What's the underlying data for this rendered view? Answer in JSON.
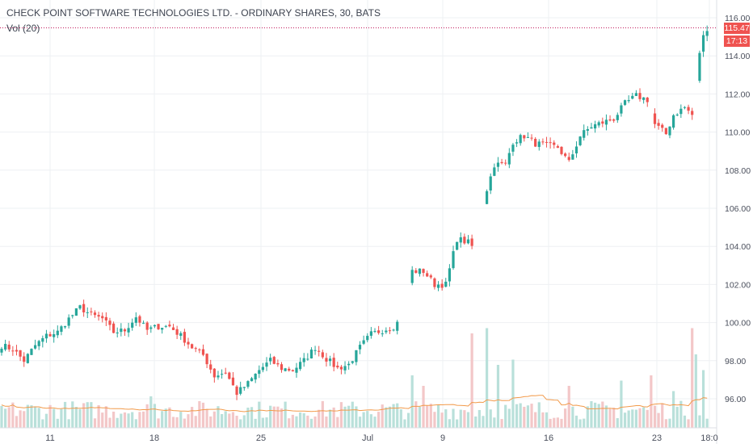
{
  "header": {
    "title": "CHECK POINT SOFTWARE TECHNOLOGIES LTD. - ORDINARY SHARES, 30, BATS",
    "volume_label": "Vol (20)"
  },
  "price_tag": {
    "last_price": "115.47",
    "countdown": "17:13"
  },
  "colors": {
    "up": "#26a69a",
    "down": "#ef5350",
    "vol_up": "#b9e0da",
    "vol_down": "#f3c7c8",
    "vol_ma": "#f29a4a",
    "grid": "#eef0f3",
    "axis_text": "#4a4f5c",
    "last_line": "#c2185b"
  },
  "chart_data": {
    "type": "candlestick",
    "title": "CHECK POINT SOFTWARE TECHNOLOGIES LTD. - ORDINARY SHARES, 30, BATS",
    "interval": "30",
    "exchange": "BATS",
    "y_ticks": [
      "116.00",
      "114.00",
      "112.00",
      "110.00",
      "108.00",
      "106.00",
      "104.00",
      "102.00",
      "100.00",
      "98.00",
      "96.00"
    ],
    "ylim": [
      95,
      116.5
    ],
    "x_ticks": [
      "11",
      "18",
      "25",
      "Jul",
      "9",
      "16",
      "23",
      "18:0"
    ],
    "last_price": 115.47,
    "grid": true,
    "legend": "none",
    "price_path": [
      [
        0,
        98.8
      ],
      [
        3,
        98.6
      ],
      [
        6,
        98.0
      ],
      [
        9,
        98.8
      ],
      [
        12,
        99.3
      ],
      [
        15,
        99.5
      ],
      [
        18,
        100.2
      ],
      [
        21,
        100.8
      ],
      [
        24,
        100.4
      ],
      [
        27,
        100.2
      ],
      [
        30,
        99.5
      ],
      [
        33,
        99.6
      ],
      [
        36,
        100.3
      ],
      [
        39,
        99.6
      ],
      [
        42,
        99.8
      ],
      [
        45,
        99.8
      ],
      [
        48,
        99.3
      ],
      [
        51,
        98.7
      ],
      [
        54,
        98.3
      ],
      [
        57,
        97.2
      ],
      [
        60,
        97.4
      ],
      [
        63,
        96.3
      ],
      [
        66,
        96.8
      ],
      [
        69,
        97.5
      ],
      [
        72,
        98.0
      ],
      [
        75,
        97.6
      ],
      [
        78,
        97.5
      ],
      [
        81,
        98.0
      ],
      [
        84,
        98.7
      ],
      [
        87,
        98.1
      ],
      [
        90,
        97.6
      ],
      [
        93,
        97.8
      ],
      [
        96,
        98.7
      ],
      [
        99,
        99.4
      ],
      [
        102,
        99.6
      ],
      [
        105,
        99.8
      ],
      [
        106,
        100.0
      ],
      [
        110,
        102.7
      ],
      [
        113,
        102.7
      ],
      [
        116,
        102.0
      ],
      [
        119,
        102.0
      ],
      [
        122,
        104.4
      ],
      [
        125,
        104.2
      ],
      [
        126,
        104.0
      ],
      [
        130,
        107.0
      ],
      [
        132,
        108.3
      ],
      [
        135,
        108.3
      ],
      [
        137,
        109.5
      ],
      [
        140,
        109.8
      ],
      [
        143,
        109.4
      ],
      [
        146,
        109.3
      ],
      [
        149,
        109.2
      ],
      [
        152,
        108.4
      ],
      [
        155,
        109.8
      ],
      [
        158,
        110.3
      ],
      [
        161,
        110.5
      ],
      [
        164,
        110.7
      ],
      [
        167,
        111.5
      ],
      [
        170,
        111.9
      ],
      [
        173,
        111.7
      ],
      [
        175,
        110.4
      ],
      [
        178,
        109.9
      ],
      [
        180,
        110.9
      ],
      [
        183,
        111.3
      ],
      [
        185,
        110.9
      ],
      [
        187,
        114.2
      ],
      [
        188,
        115.0
      ],
      [
        189,
        115.47
      ]
    ],
    "volume_spikes": [
      {
        "bar": 40,
        "vol": 0.3
      },
      {
        "bar": 110,
        "vol": 0.5
      },
      {
        "bar": 113,
        "vol": 0.4
      },
      {
        "bar": 126,
        "vol": 0.9
      },
      {
        "bar": 130,
        "vol": 0.95
      },
      {
        "bar": 133,
        "vol": 0.6
      },
      {
        "bar": 137,
        "vol": 0.65
      },
      {
        "bar": 152,
        "vol": 0.4
      },
      {
        "bar": 166,
        "vol": 0.45
      },
      {
        "bar": 174,
        "vol": 0.5
      },
      {
        "bar": 180,
        "vol": 0.35
      },
      {
        "bar": 185,
        "vol": 0.95
      },
      {
        "bar": 186,
        "vol": 0.7
      },
      {
        "bar": 188,
        "vol": 0.55
      }
    ]
  }
}
